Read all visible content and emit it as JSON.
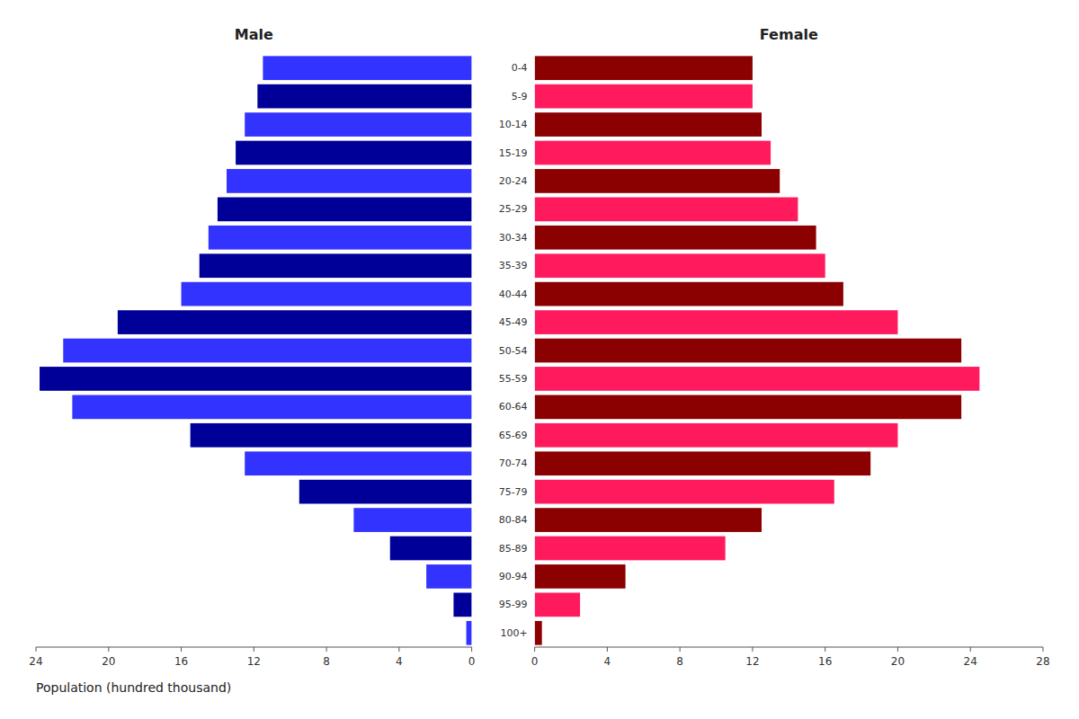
{
  "chart_data": [
    {
      "type": "bar",
      "orientation": "horizontal",
      "title": "Male",
      "xlabel": "Population (hundred thousand)",
      "categories": [
        "100+",
        "95-99",
        "90-94",
        "85-89",
        "80-84",
        "75-79",
        "70-74",
        "65-69",
        "60-64",
        "55-59",
        "50-54",
        "45-49",
        "40-44",
        "35-39",
        "30-34",
        "25-29",
        "20-24",
        "15-19",
        "10-14",
        "5-9",
        "0-4"
      ],
      "values": [
        0.3,
        1.0,
        2.5,
        4.5,
        6.5,
        9.5,
        12.5,
        15.5,
        22.0,
        23.8,
        22.5,
        19.5,
        16.0,
        15.0,
        14.5,
        14.0,
        13.5,
        13.0,
        12.5,
        11.8,
        11.5
      ],
      "colors": [
        "#3333FF",
        "#000099",
        "#3333FF",
        "#000099",
        "#3333FF",
        "#000099",
        "#3333FF",
        "#000099",
        "#3333FF",
        "#000099",
        "#3333FF",
        "#000099",
        "#3333FF",
        "#000099",
        "#3333FF",
        "#000099",
        "#3333FF",
        "#000099",
        "#3333FF",
        "#000099",
        "#3333FF"
      ],
      "xlim": [
        24,
        0
      ],
      "xticks": [
        0,
        4,
        8,
        12,
        16,
        20,
        24
      ],
      "tick_labels": "x"
    },
    {
      "type": "bar",
      "orientation": "horizontal",
      "title": "Female",
      "categories": [
        "100+",
        "95-99",
        "90-94",
        "85-89",
        "80-84",
        "75-79",
        "70-74",
        "65-69",
        "60-64",
        "55-59",
        "50-54",
        "45-49",
        "40-44",
        "35-39",
        "30-34",
        "25-29",
        "20-24",
        "15-19",
        "10-14",
        "5-9",
        "0-4"
      ],
      "values": [
        0.4,
        2.5,
        5.0,
        10.5,
        12.5,
        16.5,
        18.5,
        20.0,
        23.5,
        24.5,
        23.5,
        20.0,
        17.0,
        16.0,
        15.5,
        14.5,
        13.5,
        13.0,
        12.5,
        12.0,
        12.0
      ],
      "colors": [
        "#8B0000",
        "#FF1A5E",
        "#8B0000",
        "#FF1A5E",
        "#8B0000",
        "#FF1A5E",
        "#8B0000",
        "#FF1A5E",
        "#8B0000",
        "#FF1A5E",
        "#8B0000",
        "#FF1A5E",
        "#8B0000",
        "#FF1A5E",
        "#8B0000",
        "#FF1A5E",
        "#8B0000",
        "#FF1A5E",
        "#8B0000",
        "#FF1A5E",
        "#8B0000"
      ],
      "xlim": [
        0,
        28
      ],
      "xticks": [
        0,
        4,
        8,
        12,
        16,
        20,
        24,
        28
      ]
    }
  ]
}
